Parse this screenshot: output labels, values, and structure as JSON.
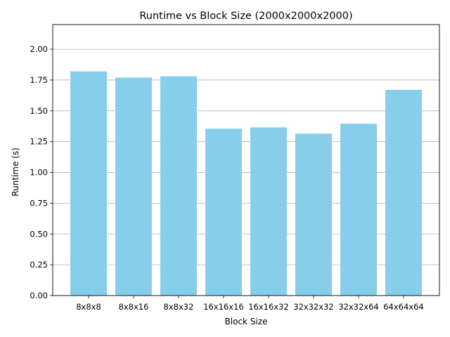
{
  "chart_data": {
    "type": "bar",
    "title": "Runtime vs Block Size (2000x2000x2000)",
    "xlabel": "Block Size",
    "ylabel": "Runtime (s)",
    "categories": [
      "8x8x8",
      "8x8x16",
      "8x8x32",
      "16x16x16",
      "16x16x32",
      "32x32x32",
      "32x32x64",
      "64x64x64"
    ],
    "values": [
      1.82,
      1.77,
      1.78,
      1.355,
      1.365,
      1.315,
      1.395,
      1.67
    ],
    "ylim": [
      0,
      2.2
    ],
    "yticks": [
      "0.00",
      "0.25",
      "0.50",
      "0.75",
      "1.00",
      "1.25",
      "1.50",
      "1.75",
      "2.00"
    ],
    "grid": "y",
    "bar_color": "#87ceeb",
    "grid_color": "#b0b0b0"
  }
}
